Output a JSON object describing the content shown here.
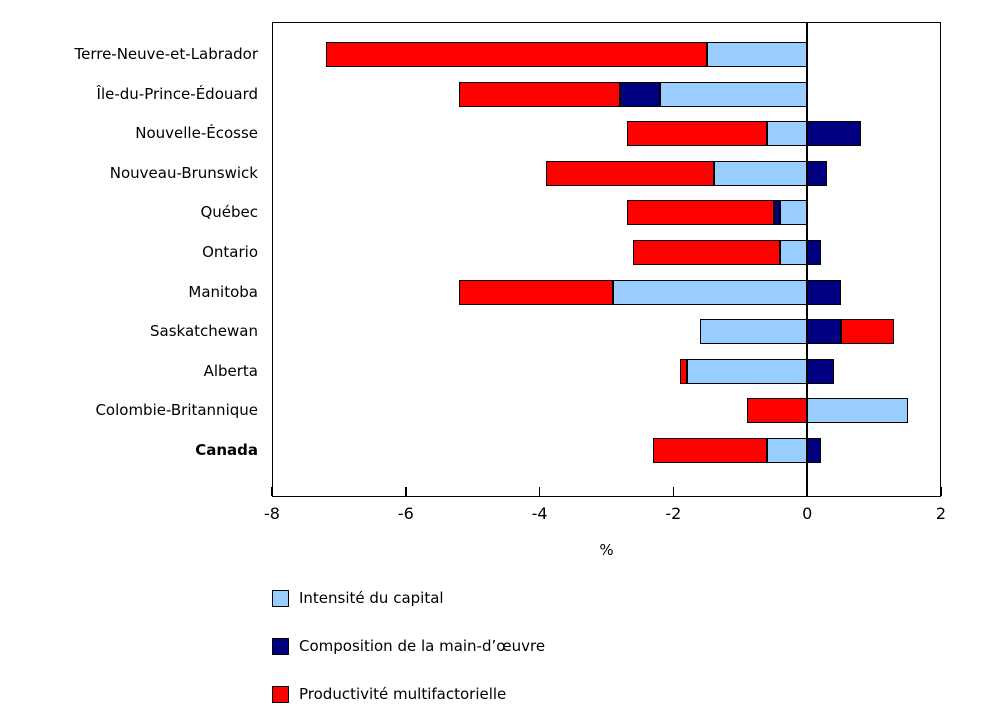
{
  "chart_data": {
    "type": "bar",
    "variant": "horizontal-stacked",
    "title": "",
    "xlabel": "%",
    "xlim": [
      -8,
      2
    ],
    "xticks": [
      -8,
      -6,
      -4,
      -2,
      0,
      2
    ],
    "grid": false,
    "legend_position": "bottom-left",
    "categories": [
      "Terre-Neuve-et-Labrador",
      "Île-du-Prince-Édouard",
      "Nouvelle-Écosse",
      "Nouveau-Brunswick",
      "Québec",
      "Ontario",
      "Manitoba",
      "Saskatchewan",
      "Alberta",
      "Colombie-Britannique",
      "Canada"
    ],
    "bold_category": "Canada",
    "series": [
      {
        "name": "Intensité du capital",
        "color": "#99CCFF",
        "values": [
          -1.5,
          -2.2,
          -0.6,
          -1.4,
          -0.4,
          -0.4,
          -2.9,
          -1.6,
          -1.8,
          1.5,
          -0.6
        ]
      },
      {
        "name": "Composition de la main-d’œuvre",
        "color": "#000080",
        "values": [
          0.0,
          -0.6,
          0.8,
          0.3,
          -0.1,
          0.2,
          0.5,
          0.5,
          0.4,
          0.0,
          0.2
        ]
      },
      {
        "name": "Productivité multifactorielle",
        "color": "#FF0000",
        "values": [
          -5.7,
          -2.4,
          -2.1,
          -2.5,
          -2.2,
          -2.2,
          -2.3,
          0.8,
          -0.1,
          -0.9,
          -1.7
        ]
      }
    ]
  }
}
